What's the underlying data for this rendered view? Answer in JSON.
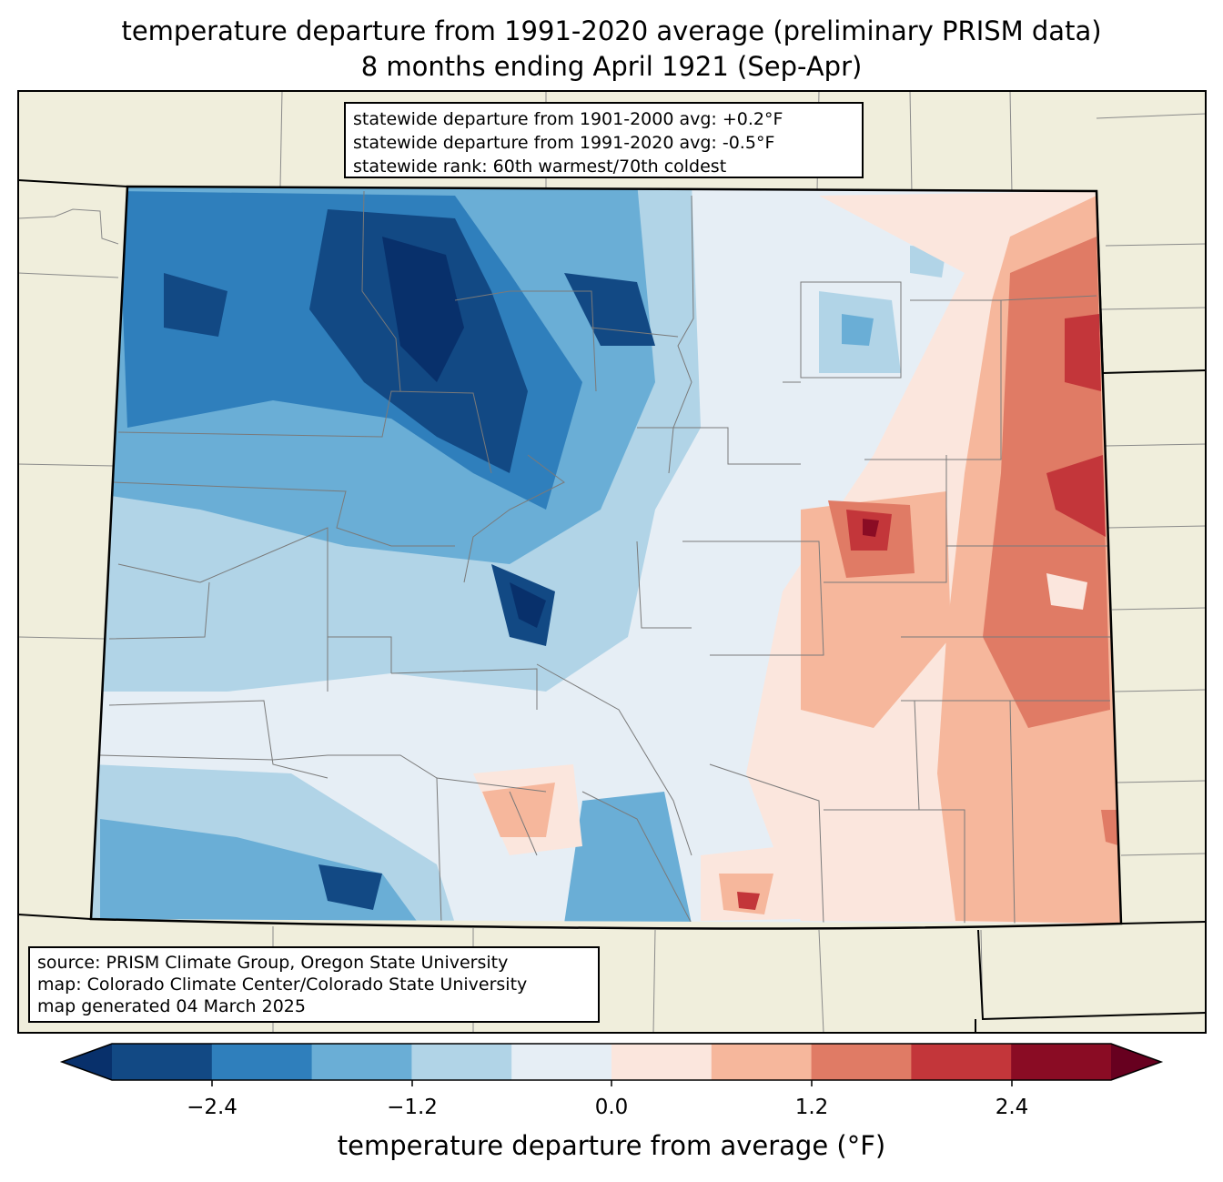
{
  "title": {
    "line1": "temperature departure from 1991-2020 average (preliminary PRISM data)",
    "line2": "8 months ending April 1921 (Sep-Apr)"
  },
  "stats_box": {
    "line1": "statewide departure from 1901-2000 avg: +0.2°F",
    "line2": "statewide departure from 1991-2020 avg: -0.5°F",
    "line3": "statewide rank: 60th warmest/70th coldest"
  },
  "source_box": {
    "line1": "source: PRISM Climate Group, Oregon State University",
    "line2": "map: Colorado Climate Center/Colorado State University",
    "line3": "map generated 04 March 2025"
  },
  "colorbar": {
    "label": "temperature departure from average (°F)",
    "ticks": [
      "−2.4",
      "−1.2",
      "0.0",
      "1.2",
      "2.4"
    ],
    "colors": [
      "#08306b",
      "#124984",
      "#2f7fbc",
      "#6aaed6",
      "#b1d4e7",
      "#e6eef5",
      "#fbe6dd",
      "#f6b79c",
      "#e07b65",
      "#c3363a",
      "#8a0c24",
      "#67001f"
    ]
  },
  "map_colors": {
    "land": "#f0eedc",
    "neutral": "#e6eef5"
  }
}
